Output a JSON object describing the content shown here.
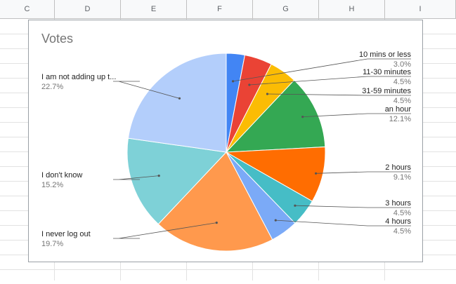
{
  "spreadsheet": {
    "columns": [
      "C",
      "D",
      "E",
      "F",
      "G",
      "H",
      "I"
    ]
  },
  "chart_data": {
    "type": "pie",
    "title": "Votes",
    "slices": [
      {
        "label": "10 mins or less",
        "percent": "3.0%",
        "value": 3.0,
        "color": "#4285f4"
      },
      {
        "label": "11-30 minutes",
        "percent": "4.5%",
        "value": 4.5,
        "color": "#ea4335"
      },
      {
        "label": "31-59 minutes",
        "percent": "4.5%",
        "value": 4.5,
        "color": "#fbbc04"
      },
      {
        "label": "an hour",
        "percent": "12.1%",
        "value": 12.1,
        "color": "#34a853"
      },
      {
        "label": "2 hours",
        "percent": "9.1%",
        "value": 9.1,
        "color": "#ff6d01"
      },
      {
        "label": "3 hours",
        "percent": "4.5%",
        "value": 4.5,
        "color": "#46bdc6"
      },
      {
        "label": "4 hours",
        "percent": "4.5%",
        "value": 4.5,
        "color": "#7baaf7"
      },
      {
        "label": "I never log out",
        "percent": "19.7%",
        "value": 19.7,
        "color": "#ff994d"
      },
      {
        "label": "I don't know",
        "percent": "15.2%",
        "value": 15.2,
        "color": "#7ed1d7"
      },
      {
        "label": "I am not adding up t...",
        "percent": "22.7%",
        "value": 22.7,
        "color": "#b3cefb"
      }
    ],
    "legend": "none",
    "grid": false
  }
}
